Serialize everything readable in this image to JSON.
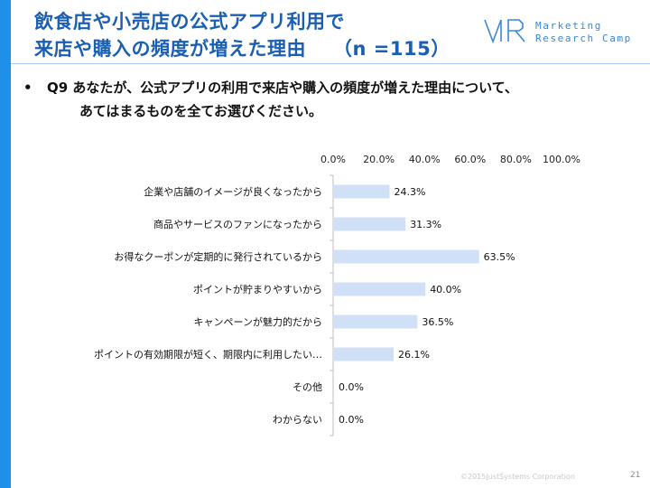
{
  "header": {
    "title_line1": "飲食店や小売店の公式アプリ利用で",
    "title_line2": "来店や購入の頻度が増えた理由",
    "sample_size": "（n =115）"
  },
  "logo": {
    "line1": "Marketing",
    "line2": "Research Camp",
    "color": "#3a88d6"
  },
  "question": {
    "bullet": "•",
    "line1": "Q9 あなたが、公式アプリの利用で来店や購入の頻度が増えた理由について、",
    "line2": "あてはまるものを全てお選びください。"
  },
  "chart_data": {
    "type": "bar",
    "orientation": "horizontal",
    "categories": [
      "企業や店舗のイメージが良くなったから",
      "商品やサービスのファンになったから",
      "お得なクーポンが定期的に発行されているから",
      "ポイントが貯まりやすいから",
      "キャンペーンが魅力的だから",
      "ポイントの有効期限が短く、期限内に利用したい…",
      "その他",
      "わからない"
    ],
    "values": [
      24.3,
      31.3,
      63.5,
      40.0,
      36.5,
      26.1,
      0.0,
      0.0
    ],
    "value_labels": [
      "24.3%",
      "31.3%",
      "63.5%",
      "40.0%",
      "36.5%",
      "26.1%",
      "0.0%",
      "0.0%"
    ],
    "x_ticks": [
      "0.0%",
      "20.0%",
      "40.0%",
      "60.0%",
      "80.0%",
      "100.0%"
    ],
    "x_tick_values": [
      0,
      20,
      40,
      60,
      80,
      100
    ],
    "xlim": [
      0,
      100
    ],
    "axis_position": "top",
    "grid": false,
    "bar_color": "#cfe0f7",
    "title": "",
    "xlabel": "",
    "ylabel": ""
  },
  "footer": {
    "copyright": "©2015JustSystems Corporation",
    "page": "21"
  }
}
